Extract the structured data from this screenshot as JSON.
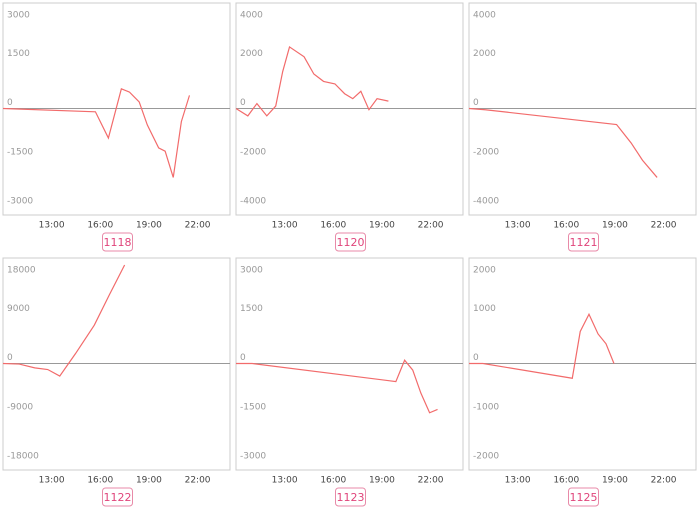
{
  "chart_data": [
    {
      "type": "line",
      "title": "1118",
      "color": "#f26b6b",
      "zero_line": true,
      "x": [
        10,
        15.7,
        16.5,
        17.3,
        17.8,
        18.4,
        18.9,
        19.6,
        20,
        20.5,
        21,
        21.5
      ],
      "values": [
        0,
        -100,
        -900,
        600,
        500,
        200,
        -500,
        -1200,
        -1300,
        -2100,
        -400,
        400
      ],
      "xlim": [
        10,
        24
      ],
      "xticks": [
        {
          "value": 13,
          "label": "13:00"
        },
        {
          "value": 16,
          "label": "16:00"
        },
        {
          "value": 19,
          "label": "19:00"
        },
        {
          "value": 22,
          "label": "22:00"
        }
      ],
      "ylim": [
        -3000,
        3000
      ],
      "yticks": [
        3000,
        1500,
        0,
        -1500,
        -3000
      ]
    },
    {
      "type": "line",
      "title": "1120",
      "color": "#f26b6b",
      "zero_line": true,
      "x": [
        10,
        10.73,
        11.29,
        11.9,
        12.45,
        12.88,
        13.3,
        14.2,
        14.8,
        15.4,
        16.1,
        16.7,
        17.2,
        17.7,
        18.2,
        18.7,
        19.4
      ],
      "values": [
        0,
        -300,
        200,
        -300,
        100,
        1500,
        2500,
        2100,
        1400,
        1100,
        1000,
        600,
        400,
        700,
        -50,
        400,
        300
      ],
      "xlim": [
        10,
        24
      ],
      "xticks": [
        {
          "value": 13,
          "label": "13:00"
        },
        {
          "value": 16,
          "label": "16:00"
        },
        {
          "value": 19,
          "label": "19:00"
        },
        {
          "value": 22,
          "label": "22:00"
        }
      ],
      "ylim": [
        -4000,
        4000
      ],
      "yticks": [
        4000,
        2000,
        0,
        -2000,
        -4000
      ]
    },
    {
      "type": "line",
      "title": "1121",
      "color": "#f26b6b",
      "zero_line": true,
      "x": [
        10,
        11,
        19.1,
        20,
        20.7,
        21.6
      ],
      "values": [
        0,
        -50,
        -650,
        -1400,
        -2100,
        -2800
      ],
      "xlim": [
        10,
        24
      ],
      "xticks": [
        {
          "value": 13,
          "label": "13:00"
        },
        {
          "value": 16,
          "label": "16:00"
        },
        {
          "value": 19,
          "label": "19:00"
        },
        {
          "value": 22,
          "label": "22:00"
        }
      ],
      "ylim": [
        -4000,
        4000
      ],
      "yticks": [
        4000,
        2000,
        0,
        -2000,
        -4000
      ]
    },
    {
      "type": "line",
      "title": "1122",
      "color": "#f26b6b",
      "zero_line": true,
      "x": [
        10,
        11,
        11.96,
        12.76,
        13.5,
        14.47,
        15.63,
        16.55,
        17.5
      ],
      "values": [
        0,
        -100,
        -800,
        -1100,
        -2300,
        1800,
        7000,
        12500,
        18000
      ],
      "xlim": [
        10,
        24
      ],
      "xticks": [
        {
          "value": 13,
          "label": "13:00"
        },
        {
          "value": 16,
          "label": "16:00"
        },
        {
          "value": 19,
          "label": "19:00"
        },
        {
          "value": 22,
          "label": "22:00"
        }
      ],
      "ylim": [
        -18000,
        18000
      ],
      "yticks": [
        18000,
        9000,
        0,
        -9000,
        -18000
      ]
    },
    {
      "type": "line",
      "title": "1123",
      "color": "#f26b6b",
      "zero_line": true,
      "x": [
        10,
        11,
        19.86,
        20.4,
        20.9,
        21.4,
        21.94,
        22.43
      ],
      "values": [
        0,
        0,
        -550,
        100,
        -200,
        -900,
        -1500,
        -1400
      ],
      "xlim": [
        10,
        24
      ],
      "xticks": [
        {
          "value": 13,
          "label": "13:00"
        },
        {
          "value": 16,
          "label": "16:00"
        },
        {
          "value": 19,
          "label": "19:00"
        },
        {
          "value": 22,
          "label": "22:00"
        }
      ],
      "ylim": [
        -3000,
        3000
      ],
      "yticks": [
        3000,
        1500,
        0,
        -1500,
        -3000
      ]
    },
    {
      "type": "line",
      "title": "1125",
      "color": "#f26b6b",
      "zero_line": true,
      "x": [
        10,
        10.86,
        16.37,
        16.86,
        17.4,
        17.96,
        18.45,
        18.94
      ],
      "values": [
        0,
        0,
        -300,
        650,
        1000,
        600,
        400,
        0
      ],
      "xlim": [
        10,
        24
      ],
      "xticks": [
        {
          "value": 13,
          "label": "13:00"
        },
        {
          "value": 16,
          "label": "16:00"
        },
        {
          "value": 19,
          "label": "19:00"
        },
        {
          "value": 22,
          "label": "22:00"
        }
      ],
      "ylim": [
        -2000,
        2000
      ],
      "yticks": [
        2000,
        1000,
        0,
        -1000,
        -2000
      ]
    }
  ]
}
